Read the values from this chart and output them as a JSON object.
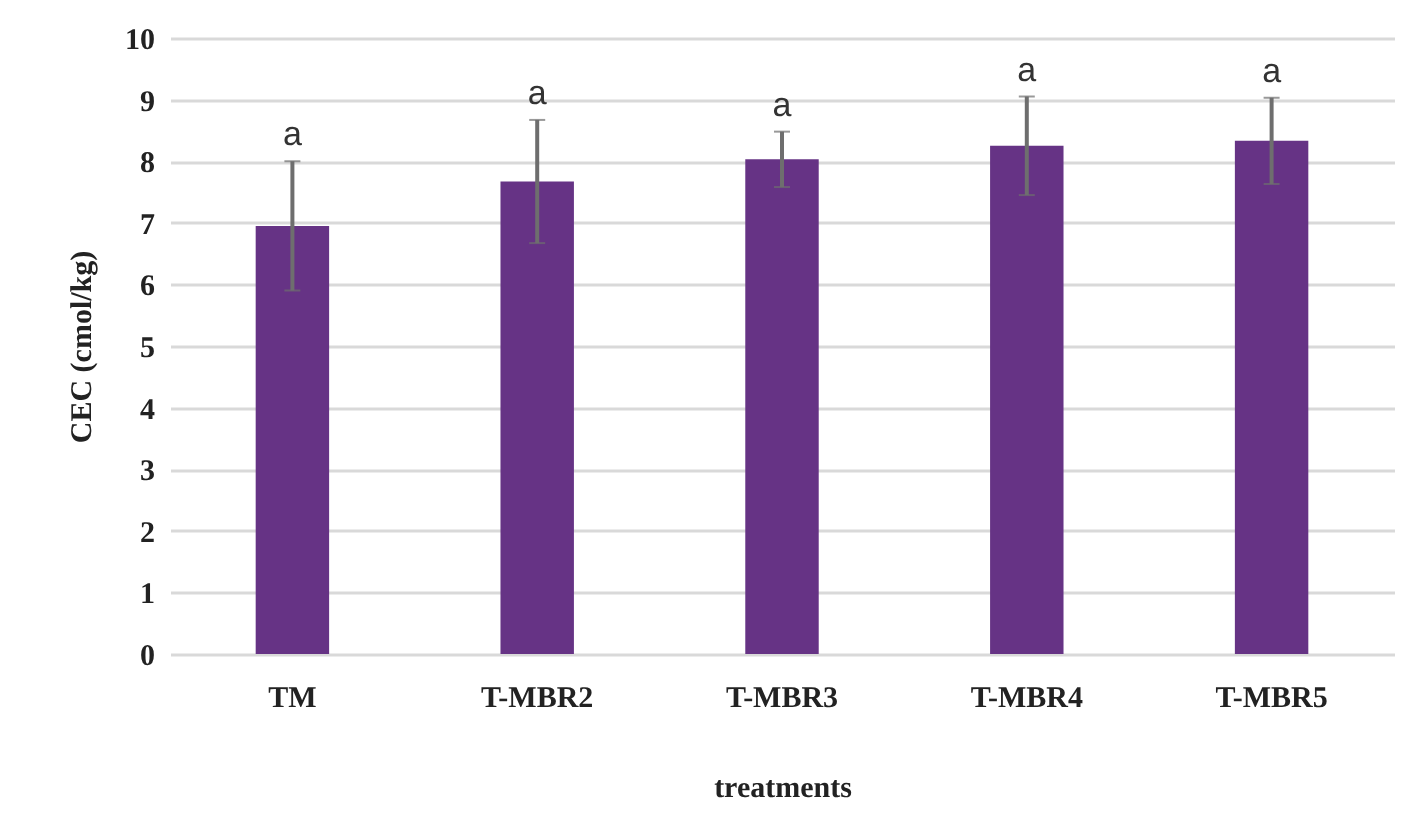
{
  "chart_data": {
    "type": "bar",
    "xlabel": "treatments",
    "ylabel": "CEC (cmol/kg)",
    "categories": [
      "TM",
      "T-MBR2",
      "T-MBR3",
      "T-MBR4",
      "T-MBR5"
    ],
    "values": [
      6.95,
      7.67,
      8.03,
      8.25,
      8.33
    ],
    "errors": [
      1.05,
      1.0,
      0.45,
      0.8,
      0.7
    ],
    "color": "#663385",
    "ylim": [
      0,
      10
    ],
    "yticks": [
      0,
      1,
      2,
      3,
      4,
      5,
      6,
      7,
      8,
      9,
      10
    ],
    "grid": "y",
    "annotations": [
      {
        "text": "a",
        "x": "TM",
        "y": 8.0
      },
      {
        "text": "a",
        "x": "T-MBR2",
        "y": 8.67
      },
      {
        "text": "a",
        "x": "T-MBR3",
        "y": 8.48
      },
      {
        "text": "a",
        "x": "T-MBR4",
        "y": 9.05
      },
      {
        "text": "a",
        "x": "T-MBR5",
        "y": 9.03
      }
    ]
  }
}
